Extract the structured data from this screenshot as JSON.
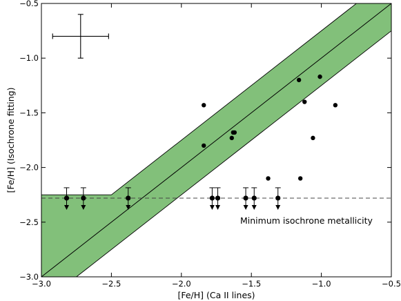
{
  "chart_data": {
    "type": "scatter",
    "title": "",
    "xlabel": "[Fe/H] (Ca II lines)",
    "ylabel": "[Fe/H] (Isochrone fitting)",
    "xlim": [
      -3.0,
      -0.5
    ],
    "ylim": [
      -3.0,
      -0.5
    ],
    "x_ticks": [
      -3.0,
      -2.5,
      -2.0,
      -1.5,
      -1.0,
      -0.5
    ],
    "x_tick_labels": [
      "−3.0",
      "−2.5",
      "−2.0",
      "−1.5",
      "−1.0",
      "−0.5"
    ],
    "y_ticks": [
      -3.0,
      -2.5,
      -2.0,
      -1.5,
      -1.0,
      -0.5
    ],
    "y_tick_labels": [
      "−3.0",
      "−2.5",
      "−2.0",
      "−1.5",
      "−1.0",
      "−0.5"
    ],
    "grid": false,
    "band_color": "#82c07a",
    "line_color": "#000000",
    "one_to_one_line": true,
    "band_half_width_dex": 0.25,
    "min_isochrone_metallicity": -2.28,
    "min_isochrone_label": "Minimum isochrone metallicity",
    "points": [
      {
        "x": -1.84,
        "y": -1.43
      },
      {
        "x": -1.84,
        "y": -1.8
      },
      {
        "x": -1.64,
        "y": -1.73
      },
      {
        "x": -1.63,
        "y": -1.68
      },
      {
        "x": -1.62,
        "y": -1.68
      },
      {
        "x": -1.16,
        "y": -1.2
      },
      {
        "x": -1.12,
        "y": -1.4
      },
      {
        "x": -1.01,
        "y": -1.17
      },
      {
        "x": -0.9,
        "y": -1.43
      },
      {
        "x": -1.06,
        "y": -1.73
      },
      {
        "x": -1.38,
        "y": -2.1
      },
      {
        "x": -1.15,
        "y": -2.1
      }
    ],
    "upper_limits": [
      {
        "x": -2.82,
        "y": -2.28
      },
      {
        "x": -2.7,
        "y": -2.28
      },
      {
        "x": -2.38,
        "y": -2.28
      },
      {
        "x": -1.78,
        "y": -2.28
      },
      {
        "x": -1.74,
        "y": -2.28
      },
      {
        "x": -1.54,
        "y": -2.28
      },
      {
        "x": -1.48,
        "y": -2.28
      },
      {
        "x": -1.31,
        "y": -2.28
      }
    ],
    "typical_error": {
      "x": -2.72,
      "y": -0.8,
      "xerr": 0.2,
      "yerr": 0.2
    }
  }
}
